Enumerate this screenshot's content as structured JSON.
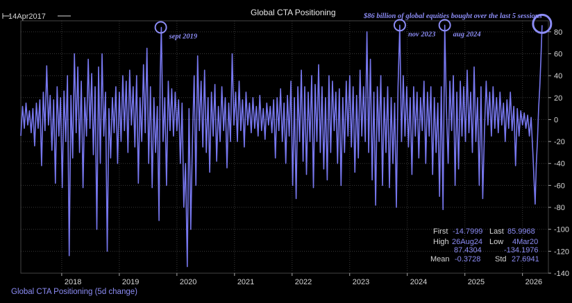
{
  "chart_data": {
    "type": "line",
    "title": "Global CTA Positioning",
    "start_label": "14Apr2017",
    "headline_note": "$86 billion of global equities bought over the last 5 sessions",
    "legend_label": "Global CTA Positioning (5d change)",
    "series_name": "Global CTA Positioning (5d change)",
    "series_color": "#7777ee",
    "ylim": [
      -140,
      90
    ],
    "yticks": [
      -140,
      -120,
      -100,
      -80,
      -60,
      -40,
      -20,
      0,
      20,
      40,
      60,
      80
    ],
    "xlim": [
      2017.29,
      2026.45
    ],
    "xticks": [
      2018,
      2019,
      2020,
      2021,
      2022,
      2023,
      2024,
      2025,
      2026
    ],
    "grid": true,
    "annotations": [
      {
        "label": "sept 2019",
        "x": 2019.72,
        "y": 84
      },
      {
        "label": "nov 2023",
        "x": 2023.87,
        "y": 86
      },
      {
        "label": "aug 2024",
        "x": 2024.65,
        "y": 86
      },
      {
        "label": "",
        "x": 2026.34,
        "y": 86
      }
    ],
    "stats": {
      "first_label": "First",
      "first_value": "-14.7999",
      "last_label": "Last",
      "last_value": "85.9968",
      "high_label": "High",
      "high_value": "26Aug24",
      "low_label": "Low",
      "low_value": "4Mar20",
      "high_num": "87.4304",
      "low_num": "-134.1976",
      "mean_label": "Mean",
      "mean_value": "-0.3728",
      "std_label": "Std",
      "std_value": "27.6941"
    },
    "points": [
      [
        2017.29,
        -14.8
      ],
      [
        2017.32,
        12
      ],
      [
        2017.35,
        -8
      ],
      [
        2017.38,
        15
      ],
      [
        2017.41,
        -5
      ],
      [
        2017.44,
        8
      ],
      [
        2017.47,
        -12
      ],
      [
        2017.5,
        10
      ],
      [
        2017.53,
        -24
      ],
      [
        2017.56,
        15
      ],
      [
        2017.59,
        -8
      ],
      [
        2017.62,
        18
      ],
      [
        2017.65,
        -42
      ],
      [
        2017.68,
        25
      ],
      [
        2017.71,
        -10
      ],
      [
        2017.74,
        49
      ],
      [
        2017.77,
        -5
      ],
      [
        2017.8,
        22
      ],
      [
        2017.83,
        -28
      ],
      [
        2017.86,
        18
      ],
      [
        2017.89,
        -58
      ],
      [
        2017.92,
        30
      ],
      [
        2017.95,
        -15
      ],
      [
        2017.98,
        20
      ],
      [
        2018.01,
        -62
      ],
      [
        2018.04,
        26
      ],
      [
        2018.07,
        -20
      ],
      [
        2018.1,
        40
      ],
      [
        2018.13,
        -124
      ],
      [
        2018.16,
        22
      ],
      [
        2018.19,
        -35
      ],
      [
        2018.22,
        60
      ],
      [
        2018.25,
        -12
      ],
      [
        2018.28,
        48
      ],
      [
        2018.31,
        -30
      ],
      [
        2018.34,
        35
      ],
      [
        2018.37,
        -62
      ],
      [
        2018.4,
        20
      ],
      [
        2018.43,
        -15
      ],
      [
        2018.46,
        55
      ],
      [
        2018.49,
        -8
      ],
      [
        2018.52,
        42
      ],
      [
        2018.55,
        -32
      ],
      [
        2018.58,
        30
      ],
      [
        2018.61,
        -100
      ],
      [
        2018.64,
        48
      ],
      [
        2018.67,
        -40
      ],
      [
        2018.7,
        60
      ],
      [
        2018.73,
        -15
      ],
      [
        2018.76,
        25
      ],
      [
        2018.79,
        -120
      ],
      [
        2018.82,
        10
      ],
      [
        2018.85,
        -35
      ],
      [
        2018.88,
        20
      ],
      [
        2018.91,
        -12
      ],
      [
        2018.94,
        30
      ],
      [
        2018.97,
        -40
      ],
      [
        2019.0,
        25
      ],
      [
        2019.03,
        -20
      ],
      [
        2019.06,
        40
      ],
      [
        2019.09,
        -10
      ],
      [
        2019.12,
        35
      ],
      [
        2019.15,
        -30
      ],
      [
        2019.18,
        45
      ],
      [
        2019.21,
        -5
      ],
      [
        2019.24,
        30
      ],
      [
        2019.27,
        -25
      ],
      [
        2019.3,
        40
      ],
      [
        2019.33,
        -58
      ],
      [
        2019.36,
        20
      ],
      [
        2019.39,
        -20
      ],
      [
        2019.42,
        50
      ],
      [
        2019.45,
        -12
      ],
      [
        2019.48,
        65
      ],
      [
        2019.51,
        -40
      ],
      [
        2019.54,
        30
      ],
      [
        2019.57,
        -62
      ],
      [
        2019.6,
        20
      ],
      [
        2019.63,
        -30
      ],
      [
        2019.66,
        12
      ],
      [
        2019.69,
        -92
      ],
      [
        2019.71,
        40
      ],
      [
        2019.73,
        84
      ],
      [
        2019.76,
        -20
      ],
      [
        2019.79,
        20
      ],
      [
        2019.82,
        -60
      ],
      [
        2019.85,
        35
      ],
      [
        2019.88,
        -10
      ],
      [
        2019.91,
        28
      ],
      [
        2019.94,
        -15
      ],
      [
        2019.97,
        25
      ],
      [
        2020.0,
        -10
      ],
      [
        2020.03,
        18
      ],
      [
        2020.06,
        -40
      ],
      [
        2020.09,
        15
      ],
      [
        2020.12,
        -80
      ],
      [
        2020.15,
        -40
      ],
      [
        2020.18,
        -134
      ],
      [
        2020.21,
        10
      ],
      [
        2020.24,
        -100
      ],
      [
        2020.27,
        -20
      ],
      [
        2020.3,
        40
      ],
      [
        2020.33,
        -60
      ],
      [
        2020.36,
        58
      ],
      [
        2020.39,
        -10
      ],
      [
        2020.42,
        35
      ],
      [
        2020.45,
        -25
      ],
      [
        2020.48,
        45
      ],
      [
        2020.51,
        -30
      ],
      [
        2020.54,
        20
      ],
      [
        2020.57,
        -48
      ],
      [
        2020.6,
        25
      ],
      [
        2020.63,
        -15
      ],
      [
        2020.66,
        32
      ],
      [
        2020.69,
        -38
      ],
      [
        2020.72,
        12
      ],
      [
        2020.75,
        -20
      ],
      [
        2020.78,
        30
      ],
      [
        2020.81,
        -10
      ],
      [
        2020.84,
        20
      ],
      [
        2020.87,
        -44
      ],
      [
        2020.9,
        15
      ],
      [
        2020.93,
        -20
      ],
      [
        2020.96,
        60
      ],
      [
        2020.99,
        -5
      ],
      [
        2021.02,
        25
      ],
      [
        2021.05,
        -20
      ],
      [
        2021.08,
        35
      ],
      [
        2021.11,
        -10
      ],
      [
        2021.14,
        18
      ],
      [
        2021.17,
        -25
      ],
      [
        2021.2,
        25
      ],
      [
        2021.23,
        -5
      ],
      [
        2021.26,
        15
      ],
      [
        2021.29,
        -12
      ],
      [
        2021.32,
        20
      ],
      [
        2021.35,
        -8
      ],
      [
        2021.38,
        12
      ],
      [
        2021.41,
        -15
      ],
      [
        2021.44,
        22
      ],
      [
        2021.47,
        -10
      ],
      [
        2021.5,
        10
      ],
      [
        2021.53,
        -18
      ],
      [
        2021.56,
        15
      ],
      [
        2021.59,
        -5
      ],
      [
        2021.62,
        12
      ],
      [
        2021.65,
        -12
      ],
      [
        2021.68,
        18
      ],
      [
        2021.71,
        -35
      ],
      [
        2021.74,
        20
      ],
      [
        2021.77,
        -10
      ],
      [
        2021.8,
        28
      ],
      [
        2021.83,
        -20
      ],
      [
        2021.86,
        15
      ],
      [
        2021.89,
        -40
      ],
      [
        2021.92,
        22
      ],
      [
        2021.95,
        -15
      ],
      [
        2021.98,
        35
      ],
      [
        2022.01,
        -60
      ],
      [
        2022.04,
        20
      ],
      [
        2022.07,
        -72
      ],
      [
        2022.1,
        30
      ],
      [
        2022.13,
        -20
      ],
      [
        2022.16,
        45
      ],
      [
        2022.19,
        -38
      ],
      [
        2022.22,
        30
      ],
      [
        2022.25,
        -50
      ],
      [
        2022.28,
        25
      ],
      [
        2022.31,
        -20
      ],
      [
        2022.34,
        40
      ],
      [
        2022.37,
        -62
      ],
      [
        2022.4,
        32
      ],
      [
        2022.43,
        -20
      ],
      [
        2022.46,
        50
      ],
      [
        2022.49,
        -30
      ],
      [
        2022.52,
        30
      ],
      [
        2022.55,
        -45
      ],
      [
        2022.58,
        20
      ],
      [
        2022.61,
        -55
      ],
      [
        2022.64,
        40
      ],
      [
        2022.67,
        -30
      ],
      [
        2022.7,
        35
      ],
      [
        2022.73,
        -10
      ],
      [
        2022.76,
        25
      ],
      [
        2022.79,
        -40
      ],
      [
        2022.82,
        28
      ],
      [
        2022.85,
        -60
      ],
      [
        2022.88,
        20
      ],
      [
        2022.91,
        -30
      ],
      [
        2022.94,
        35
      ],
      [
        2022.97,
        -15
      ],
      [
        2023.0,
        40
      ],
      [
        2023.03,
        -25
      ],
      [
        2023.06,
        30
      ],
      [
        2023.09,
        -48
      ],
      [
        2023.12,
        22
      ],
      [
        2023.15,
        -35
      ],
      [
        2023.18,
        45
      ],
      [
        2023.21,
        -15
      ],
      [
        2023.24,
        30
      ],
      [
        2023.27,
        -20
      ],
      [
        2023.3,
        80
      ],
      [
        2023.33,
        -30
      ],
      [
        2023.36,
        55
      ],
      [
        2023.39,
        -55
      ],
      [
        2023.42,
        25
      ],
      [
        2023.45,
        -78
      ],
      [
        2023.48,
        30
      ],
      [
        2023.51,
        -20
      ],
      [
        2023.54,
        40
      ],
      [
        2023.57,
        -60
      ],
      [
        2023.6,
        20
      ],
      [
        2023.63,
        -30
      ],
      [
        2023.66,
        30
      ],
      [
        2023.69,
        -62
      ],
      [
        2023.72,
        20
      ],
      [
        2023.75,
        -40
      ],
      [
        2023.78,
        15
      ],
      [
        2023.81,
        -80
      ],
      [
        2023.84,
        30
      ],
      [
        2023.87,
        86
      ],
      [
        2023.9,
        -20
      ],
      [
        2023.93,
        40
      ],
      [
        2023.96,
        -15
      ],
      [
        2023.99,
        30
      ],
      [
        2024.02,
        -25
      ],
      [
        2024.05,
        20
      ],
      [
        2024.08,
        -50
      ],
      [
        2024.11,
        30
      ],
      [
        2024.14,
        -15
      ],
      [
        2024.17,
        25
      ],
      [
        2024.2,
        -35
      ],
      [
        2024.23,
        20
      ],
      [
        2024.26,
        -10
      ],
      [
        2024.29,
        35
      ],
      [
        2024.32,
        -40
      ],
      [
        2024.35,
        25
      ],
      [
        2024.38,
        -15
      ],
      [
        2024.41,
        30
      ],
      [
        2024.44,
        -50
      ],
      [
        2024.47,
        20
      ],
      [
        2024.5,
        -30
      ],
      [
        2024.53,
        15
      ],
      [
        2024.56,
        -70
      ],
      [
        2024.59,
        30
      ],
      [
        2024.62,
        -82
      ],
      [
        2024.65,
        86
      ],
      [
        2024.68,
        10
      ],
      [
        2024.71,
        -40
      ],
      [
        2024.74,
        35
      ],
      [
        2024.77,
        -10
      ],
      [
        2024.8,
        40
      ],
      [
        2024.83,
        -60
      ],
      [
        2024.86,
        25
      ],
      [
        2024.89,
        -45
      ],
      [
        2024.92,
        35
      ],
      [
        2024.95,
        -15
      ],
      [
        2024.98,
        30
      ],
      [
        2025.01,
        -20
      ],
      [
        2025.04,
        45
      ],
      [
        2025.07,
        -12
      ],
      [
        2025.1,
        25
      ],
      [
        2025.13,
        -30
      ],
      [
        2025.16,
        48
      ],
      [
        2025.19,
        -20
      ],
      [
        2025.22,
        20
      ],
      [
        2025.25,
        -60
      ],
      [
        2025.28,
        30
      ],
      [
        2025.31,
        -72
      ],
      [
        2025.34,
        -10
      ],
      [
        2025.37,
        35
      ],
      [
        2025.4,
        -5
      ],
      [
        2025.43,
        25
      ],
      [
        2025.46,
        -15
      ],
      [
        2025.49,
        30
      ],
      [
        2025.52,
        -8
      ],
      [
        2025.55,
        20
      ],
      [
        2025.58,
        -12
      ],
      [
        2025.61,
        25
      ],
      [
        2025.64,
        -5
      ],
      [
        2025.67,
        15
      ],
      [
        2025.7,
        -20
      ],
      [
        2025.73,
        18
      ],
      [
        2025.76,
        -8
      ],
      [
        2025.79,
        25
      ],
      [
        2025.82,
        -10
      ],
      [
        2025.85,
        12
      ],
      [
        2025.88,
        -42
      ],
      [
        2025.91,
        10
      ],
      [
        2025.94,
        -15
      ],
      [
        2025.97,
        8
      ],
      [
        2026.0,
        -5
      ],
      [
        2026.03,
        6
      ],
      [
        2026.06,
        -8
      ],
      [
        2026.09,
        4
      ],
      [
        2026.12,
        -15
      ],
      [
        2026.15,
        2
      ],
      [
        2026.18,
        -30
      ],
      [
        2026.2,
        -55
      ],
      [
        2026.22,
        -77
      ],
      [
        2026.24,
        -40
      ],
      [
        2026.26,
        -20
      ],
      [
        2026.28,
        10
      ],
      [
        2026.3,
        30
      ],
      [
        2026.32,
        55
      ],
      [
        2026.34,
        86
      ]
    ]
  }
}
